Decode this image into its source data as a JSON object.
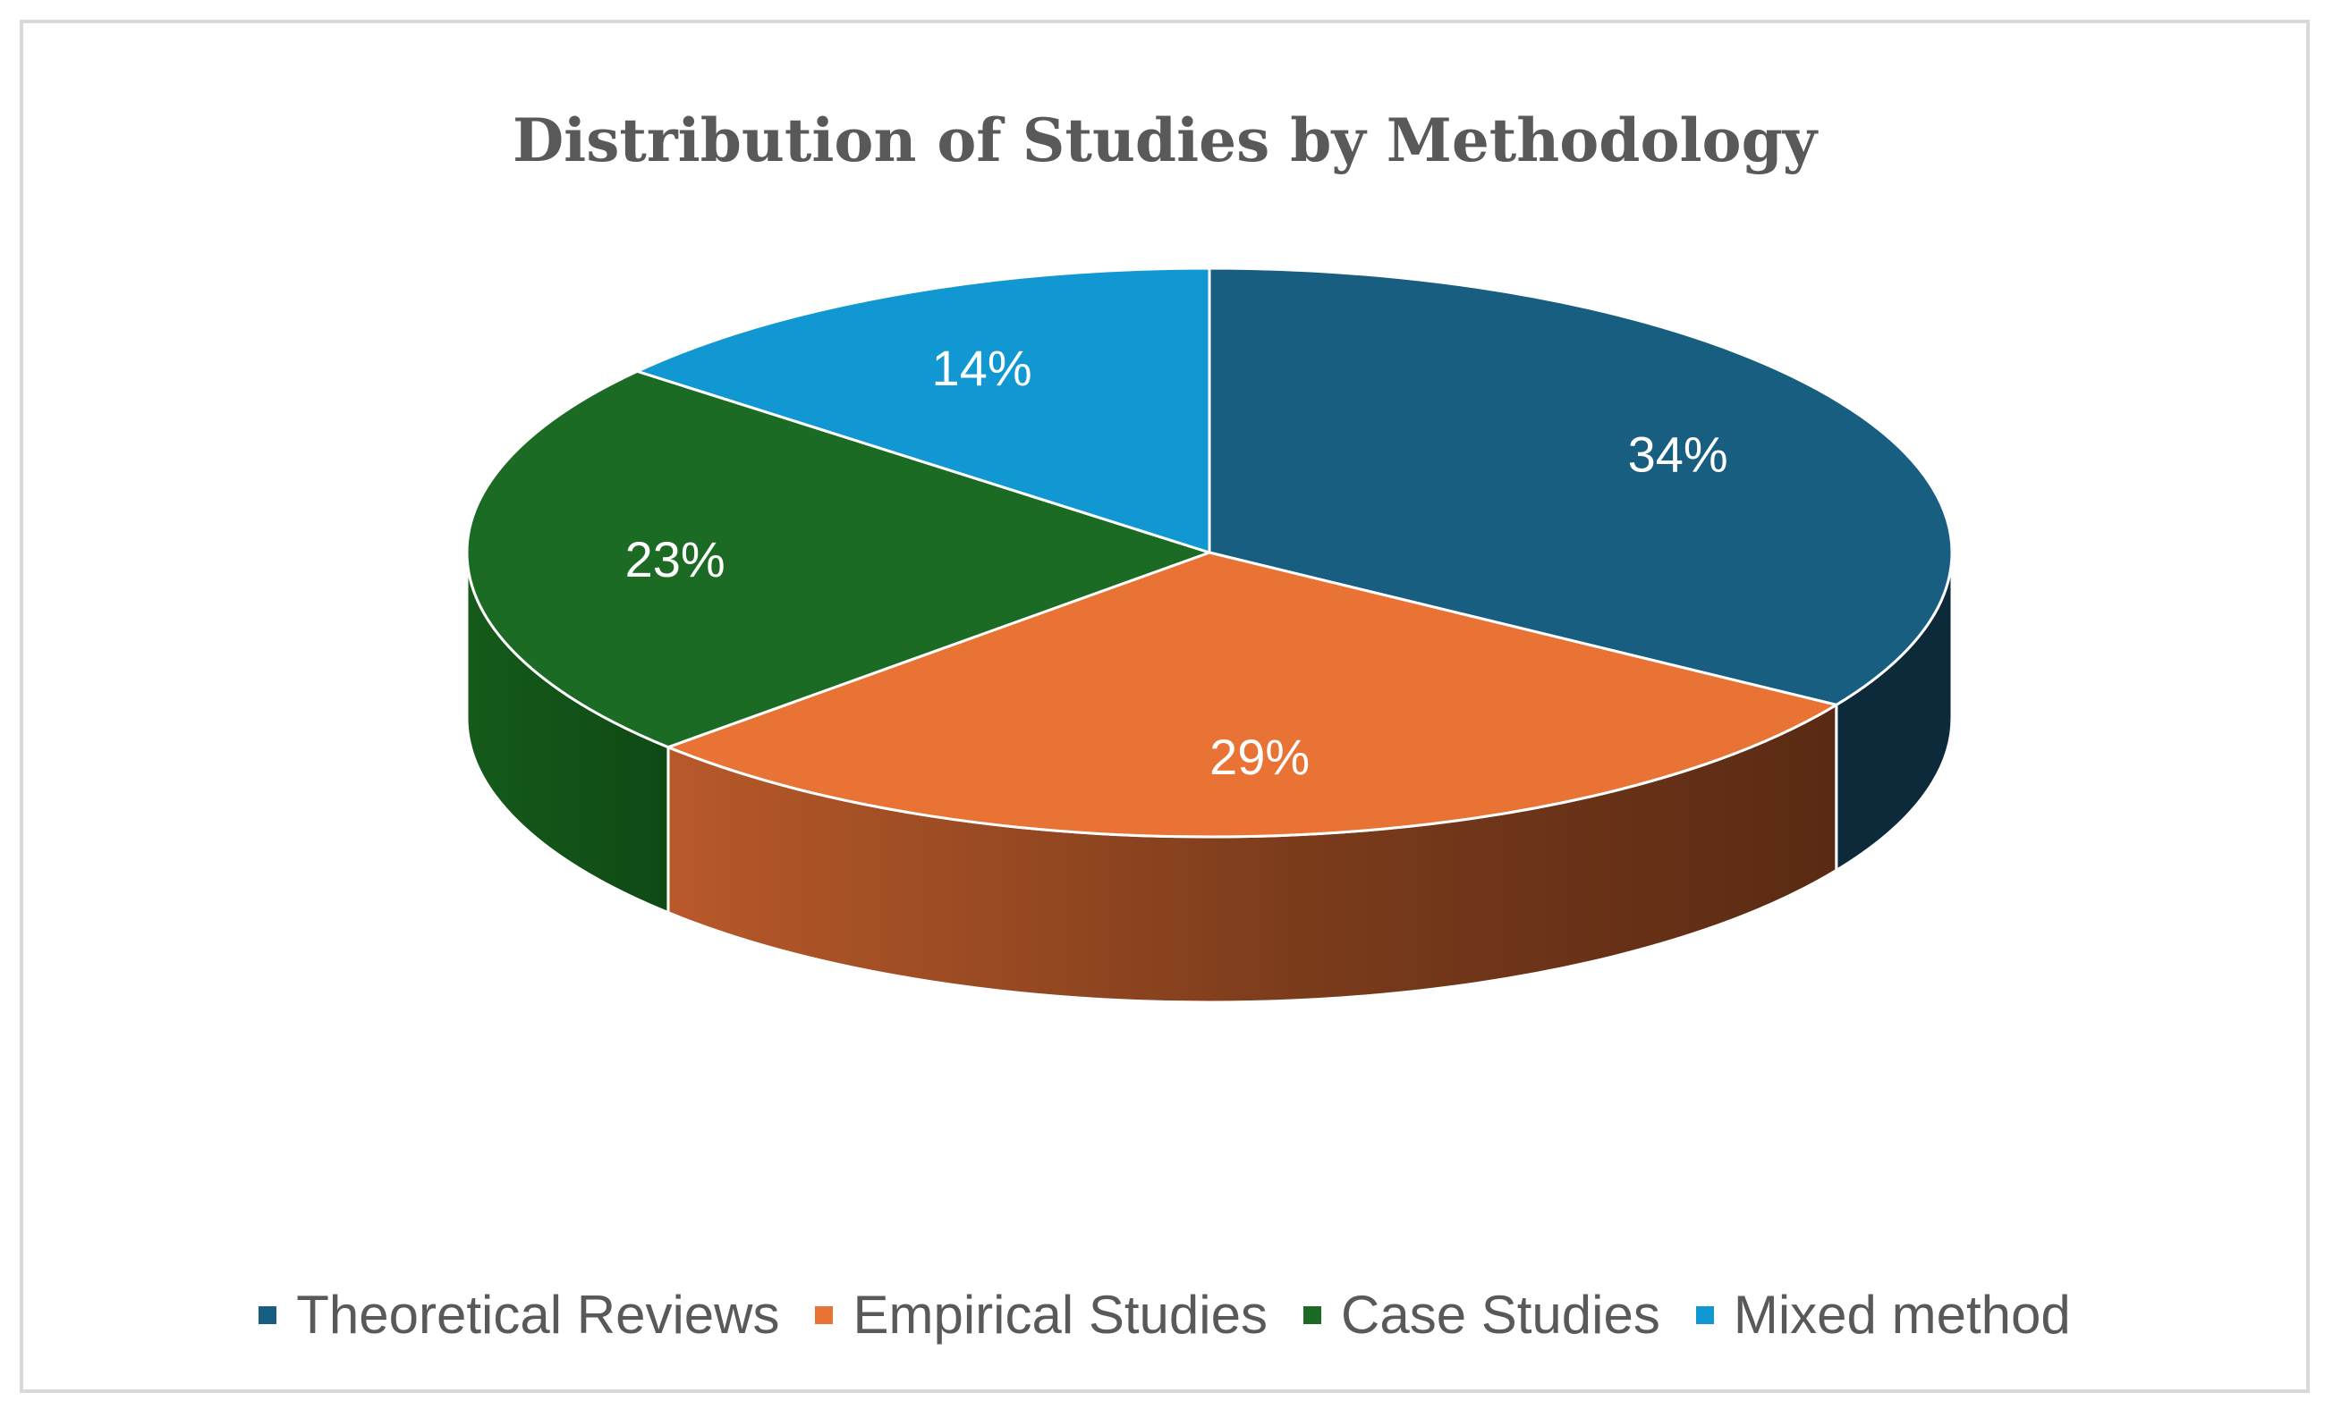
{
  "chart_data": {
    "type": "pie",
    "title": "Distribution of Studies by Methodology",
    "categories": [
      "Theoretical Reviews",
      "Empirical Studies",
      "Case Studies",
      "Mixed method"
    ],
    "values": [
      34,
      29,
      23,
      14
    ],
    "labels": [
      "34%",
      "29%",
      "23%",
      "14%"
    ],
    "colors": [
      "#175e80",
      "#e87334",
      "#1c6b25",
      "#1198d2"
    ],
    "legend_position": "bottom"
  }
}
